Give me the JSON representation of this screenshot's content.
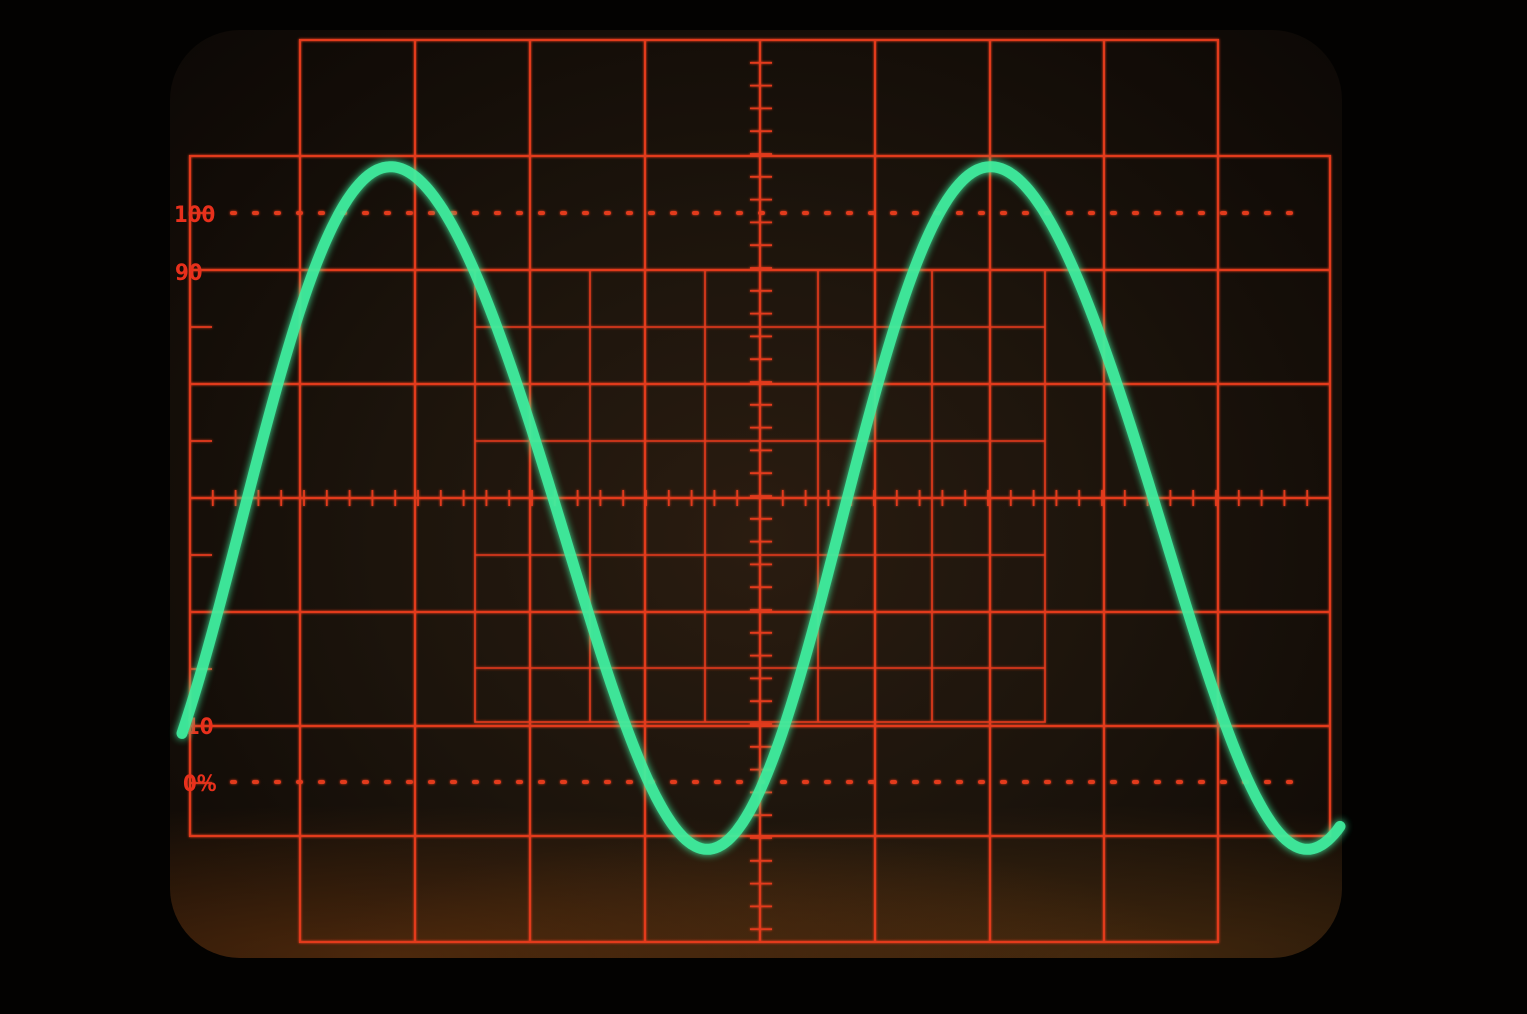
{
  "graticule": {
    "label_100": "100",
    "label_90": "90",
    "label_10": "10",
    "label_0": "0%"
  },
  "colors": {
    "graticule": "#e23a1e",
    "trace": "#3ff0a0",
    "screen": "#1c140c"
  }
}
